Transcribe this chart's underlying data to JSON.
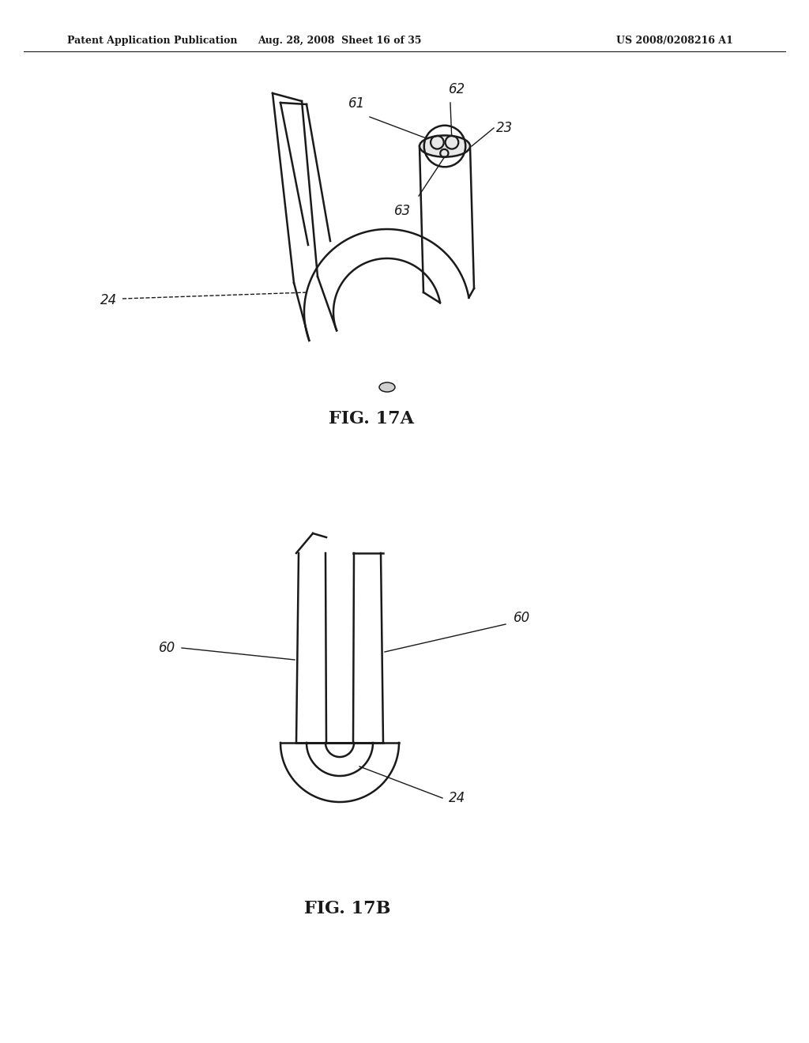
{
  "bg_color": "#ffffff",
  "header_left": "Patent Application Publication",
  "header_mid": "Aug. 28, 2008  Sheet 16 of 35",
  "header_right": "US 2008/0208216 A1",
  "fig17a_label": "FIG. 17A",
  "fig17b_label": "FIG. 17B",
  "line_color": "#1a1a1a"
}
